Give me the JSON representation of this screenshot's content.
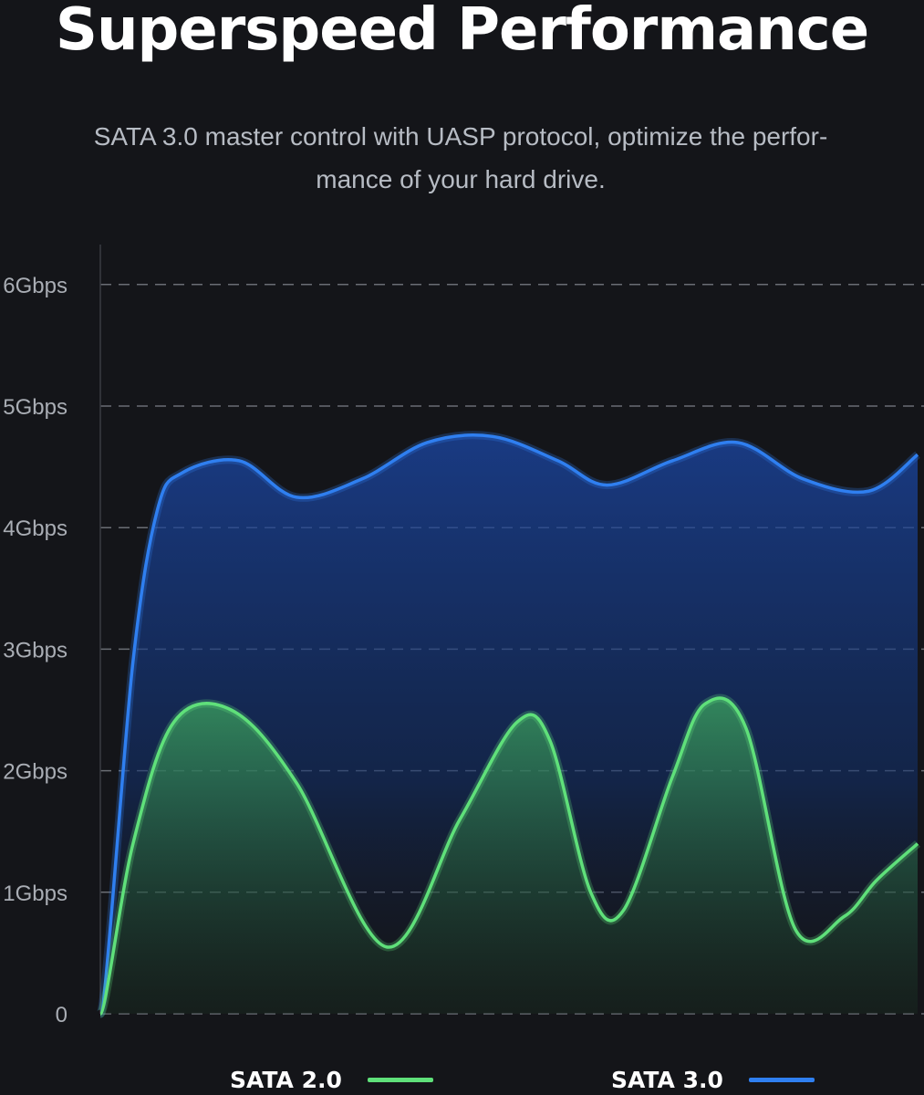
{
  "header": {
    "title": "Superspeed Performance",
    "subtitle": "SATA 3.0 master control with UASP protocol, optimize the perfor-mance of your hard drive."
  },
  "colors": {
    "background": "#141519",
    "sata2": "#5fe07a",
    "sata3": "#2f7ff0",
    "grid": "#6a6d74",
    "tick": "#a9adb4"
  },
  "chart_data": {
    "type": "area",
    "title": "",
    "xlabel": "",
    "ylabel": "",
    "y_ticks": [
      "0",
      "1Gbps",
      "2Gbps",
      "3Gbps",
      "4Gbps",
      "5Gbps",
      "6Gbps"
    ],
    "ylim": [
      0,
      6.3
    ],
    "xlim": [
      0,
      100
    ],
    "grid": true,
    "legend_position": "bottom",
    "series": [
      {
        "name": "SATA 2.0",
        "color": "#5fe07a",
        "x": [
          0,
          4,
          9,
          16,
          24,
          35,
          44,
          51,
          55,
          60,
          64,
          70,
          74,
          79,
          85,
          91,
          95,
          100
        ],
        "y": [
          0,
          1.4,
          2.4,
          2.5,
          1.9,
          0.55,
          1.6,
          2.4,
          2.25,
          1.0,
          0.85,
          1.95,
          2.55,
          2.35,
          0.7,
          0.8,
          1.1,
          1.4
        ]
      },
      {
        "name": "SATA 3.0",
        "color": "#2f7ff0",
        "x": [
          0,
          4,
          7,
          10,
          17,
          24,
          32,
          40,
          48,
          56,
          62,
          70,
          78,
          86,
          94,
          100
        ],
        "y": [
          0,
          2.9,
          4.15,
          4.45,
          4.55,
          4.25,
          4.4,
          4.7,
          4.75,
          4.55,
          4.35,
          4.55,
          4.7,
          4.4,
          4.3,
          4.6
        ]
      }
    ]
  }
}
